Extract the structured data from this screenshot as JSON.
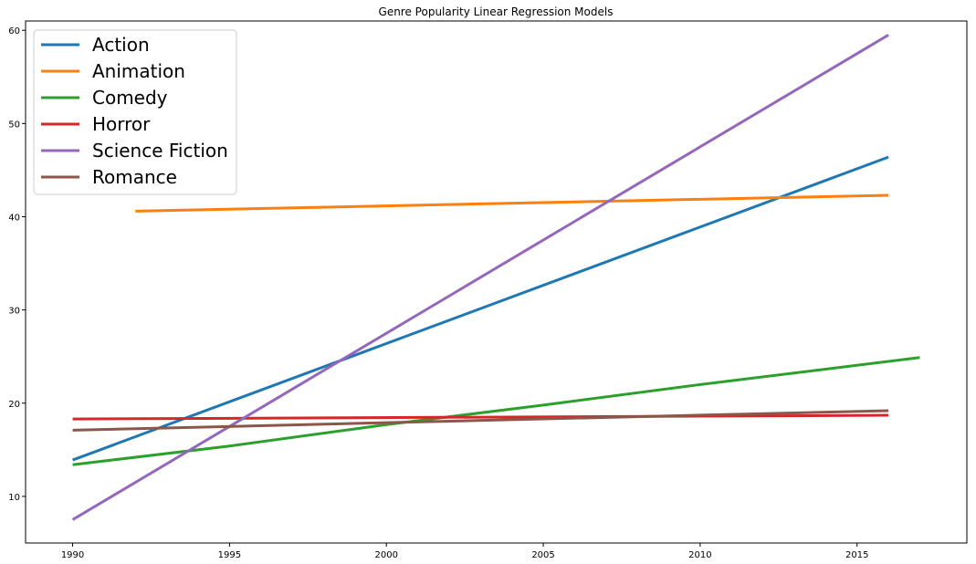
{
  "chart_data": {
    "type": "line",
    "title": "Genre Popularity Linear Regression Models",
    "xlabel": "",
    "ylabel": "",
    "xlim": [
      1988.5,
      2018.5
    ],
    "ylim": [
      5,
      61
    ],
    "xticks": [
      1990,
      1995,
      2000,
      2005,
      2010,
      2015
    ],
    "yticks": [
      10,
      20,
      30,
      40,
      50,
      60
    ],
    "grid": false,
    "legend": {
      "position": "top-left"
    },
    "series": [
      {
        "name": "Action",
        "color": "#1f77b4",
        "x": [
          1990,
          2016
        ],
        "y": [
          13.9,
          46.4
        ]
      },
      {
        "name": "Animation",
        "color": "#ff7f0e",
        "x": [
          1992,
          2016
        ],
        "y": [
          40.6,
          42.3
        ]
      },
      {
        "name": "Comedy",
        "color": "#2ca02c",
        "x": [
          1990,
          1995,
          2000,
          2005,
          2010,
          2017
        ],
        "y": [
          13.4,
          15.4,
          17.7,
          19.8,
          22.0,
          24.9
        ]
      },
      {
        "name": "Horror",
        "color": "#d62728",
        "x": [
          1990,
          2016
        ],
        "y": [
          18.3,
          18.7
        ]
      },
      {
        "name": "Science Fiction",
        "color": "#9467bd",
        "x": [
          1990,
          2016
        ],
        "y": [
          7.5,
          59.5
        ]
      },
      {
        "name": "Romance",
        "color": "#8c564b",
        "x": [
          1990,
          2016
        ],
        "y": [
          17.1,
          19.2
        ]
      }
    ]
  }
}
